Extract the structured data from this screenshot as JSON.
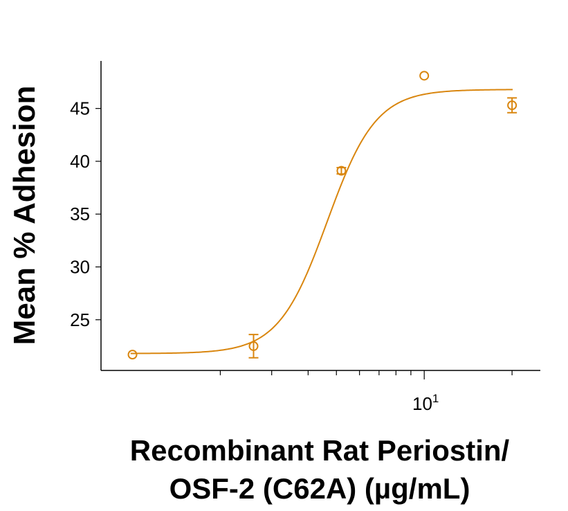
{
  "chart_data": {
    "type": "scatter",
    "title": "",
    "ylabel": "Mean % Adhesion",
    "xlabel_lines": [
      "Recombinant Rat Periostin/",
      "OSF-2 (C62A) (µg/mL)"
    ],
    "x_scale": "log",
    "xlim": [
      0.78,
      25
    ],
    "ylim": [
      20.2,
      49.5
    ],
    "y_ticks": [
      25,
      30,
      35,
      40,
      45
    ],
    "x_major_ticks": [
      10
    ],
    "x_major_tick_labels": [
      {
        "base": "10",
        "exp": "1"
      }
    ],
    "x_minor_ticks": [
      2,
      3,
      4,
      5,
      6,
      7,
      8,
      9,
      20
    ],
    "grid": false,
    "legend": "none",
    "color": "#d9860f",
    "series": [
      {
        "x": [
          1,
          2.6,
          5.2,
          10,
          20
        ],
        "y": [
          21.7,
          22.5,
          39.1,
          48.1,
          45.3
        ],
        "yerr": [
          0.15,
          1.1,
          0.3,
          0.2,
          0.7
        ]
      }
    ],
    "fit": {
      "model": "4PL",
      "bottom": 21.8,
      "top": 46.8,
      "ec50": 4.65,
      "hill": 5.2
    }
  }
}
